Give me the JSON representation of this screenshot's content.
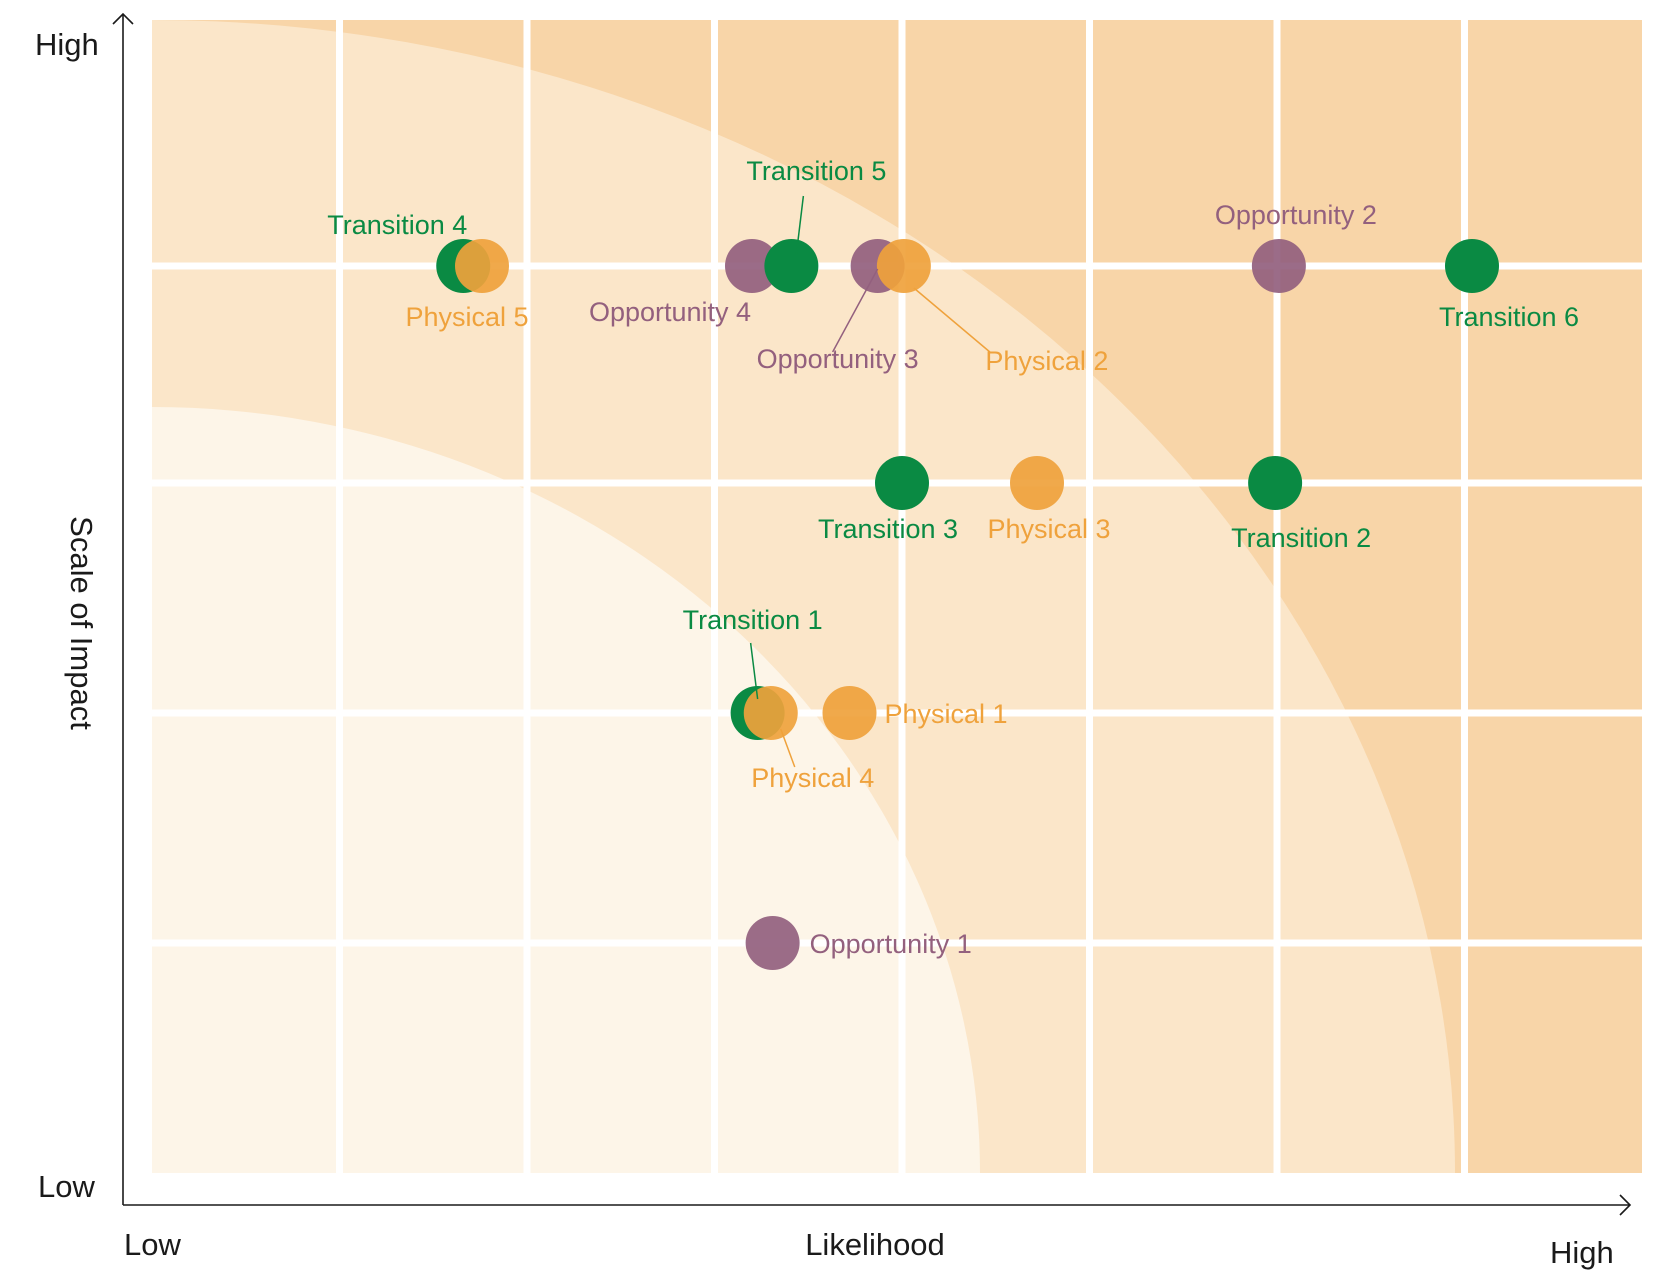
{
  "chart_data": {
    "type": "scatter",
    "title": "",
    "xlabel": "Likelihood",
    "ylabel": "Scale of Impact",
    "x_low_label": "Low",
    "x_high_label": "High",
    "y_low_label": "Low",
    "y_high_label": "High",
    "xlim": [
      0,
      8
    ],
    "ylim": [
      0,
      5
    ],
    "grid": true,
    "legend": "none",
    "zones": [
      {
        "name": "low",
        "color": "#fdf5e8"
      },
      {
        "name": "medium",
        "color": "#fbe6c9"
      },
      {
        "name": "high",
        "color": "#f8d5a8"
      }
    ],
    "colors": {
      "Transition": "#0a8a43",
      "Physical": "#efa23c",
      "Opportunity": "#93607e"
    },
    "points": [
      {
        "label": "Transition 1",
        "group": "Transition",
        "x": 3.23,
        "y": 2.0
      },
      {
        "label": "Transition 2",
        "group": "Transition",
        "x": 5.99,
        "y": 3.0
      },
      {
        "label": "Transition 3",
        "group": "Transition",
        "x": 4.0,
        "y": 3.0
      },
      {
        "label": "Transition 4",
        "group": "Transition",
        "x": 1.66,
        "y": 4.0
      },
      {
        "label": "Transition 5",
        "group": "Transition",
        "x": 3.41,
        "y": 4.0
      },
      {
        "label": "Transition 6",
        "group": "Transition",
        "x": 7.04,
        "y": 4.0
      },
      {
        "label": "Physical 1",
        "group": "Physical",
        "x": 3.72,
        "y": 2.0
      },
      {
        "label": "Physical 2",
        "group": "Physical",
        "x": 4.01,
        "y": 4.0
      },
      {
        "label": "Physical 3",
        "group": "Physical",
        "x": 4.72,
        "y": 3.0
      },
      {
        "label": "Physical 4",
        "group": "Physical",
        "x": 3.3,
        "y": 2.0
      },
      {
        "label": "Physical 5",
        "group": "Physical",
        "x": 1.76,
        "y": 4.0
      },
      {
        "label": "Opportunity 1",
        "group": "Opportunity",
        "x": 3.31,
        "y": 1.0
      },
      {
        "label": "Opportunity 2",
        "group": "Opportunity",
        "x": 6.01,
        "y": 4.0
      },
      {
        "label": "Opportunity 3",
        "group": "Opportunity",
        "x": 3.87,
        "y": 4.0
      },
      {
        "label": "Opportunity 4",
        "group": "Opportunity",
        "x": 3.2,
        "y": 4.0
      }
    ]
  }
}
